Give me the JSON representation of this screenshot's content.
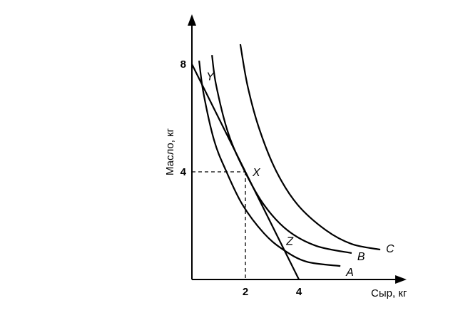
{
  "chart_data": {
    "type": "line",
    "title": "",
    "xlabel": "Сыр, кг",
    "ylabel": "Масло, кг",
    "xlim": [
      0,
      7.8
    ],
    "ylim": [
      0,
      9.7
    ],
    "x_ticks": [
      "2",
      "4"
    ],
    "x_tick_values": [
      2,
      4
    ],
    "y_ticks": [
      "4",
      "8"
    ],
    "y_tick_values": [
      4,
      8
    ],
    "grid": false,
    "budget_line": {
      "points": [
        [
          0,
          8
        ],
        [
          4,
          0
        ]
      ]
    },
    "series": [
      {
        "name": "A",
        "points": [
          [
            0.27,
            8.13
          ],
          [
            0.43,
            6.94
          ],
          [
            0.83,
            5.17
          ],
          [
            1.28,
            4.03
          ],
          [
            1.89,
            2.78
          ],
          [
            2.69,
            1.72
          ],
          [
            3.41,
            1.11
          ],
          [
            4.29,
            0.66
          ],
          [
            5.55,
            0.5
          ]
        ]
      },
      {
        "name": "B",
        "points": [
          [
            0.75,
            8.34
          ],
          [
            0.91,
            7.2
          ],
          [
            1.36,
            5.43
          ],
          [
            1.97,
            4.03
          ],
          [
            2.69,
            2.78
          ],
          [
            3.57,
            1.83
          ],
          [
            4.64,
            1.25
          ],
          [
            5.97,
            0.98
          ]
        ]
      },
      {
        "name": "C",
        "points": [
          [
            1.81,
            8.74
          ],
          [
            2.08,
            7.2
          ],
          [
            2.51,
            5.62
          ],
          [
            3.15,
            4.03
          ],
          [
            3.95,
            2.78
          ],
          [
            5.01,
            1.83
          ],
          [
            5.97,
            1.32
          ],
          [
            7.04,
            1.11
          ]
        ]
      }
    ],
    "annotations": [
      {
        "label": "Y",
        "point": [
          0.43,
          7.3
        ]
      },
      {
        "label": "X",
        "point": [
          2,
          4
        ]
      },
      {
        "label": "Z",
        "point": [
          3.42,
          1.18
        ]
      }
    ],
    "guides": {
      "point": [
        2,
        4
      ],
      "style": "dashed"
    }
  }
}
